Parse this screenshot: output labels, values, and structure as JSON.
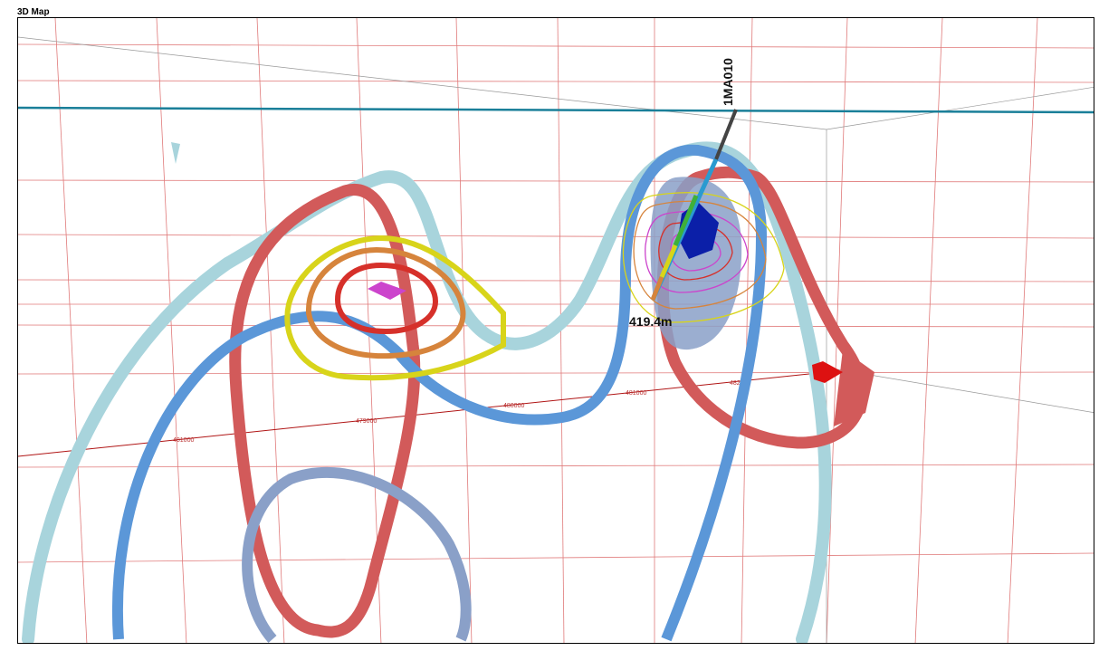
{
  "window": {
    "title": "3D Map"
  },
  "map": {
    "drillhole": {
      "name": "1MA010",
      "depth_label": "419.4m"
    },
    "axis_ticks": [
      "481000",
      "479000",
      "480000",
      "481000",
      "482000"
    ],
    "colors": {
      "grid": "#e07a7a",
      "bounding_box": "#999999",
      "surface_line": "#1a7f99",
      "light_blue_contour": "#a8d4dc",
      "blue_contour": "#5b97d8",
      "red_contour": "#d25a5a",
      "steel_contour": "#8aa0c8",
      "yellow_contour": "#d8d41a",
      "orange_contour": "#d6843c",
      "magenta_body": "#cc44cc",
      "dark_blue_body": "#0b1fa8",
      "red_marker": "#dd1111"
    }
  }
}
